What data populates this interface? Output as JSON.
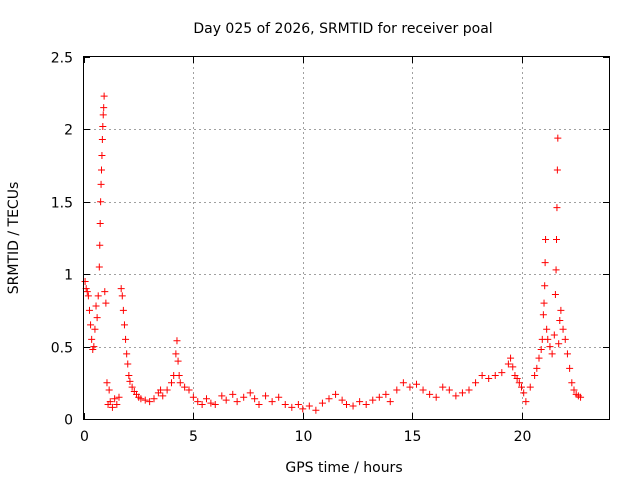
{
  "chart_data": {
    "type": "scatter",
    "title": "Day 025 of 2026, SRMTID for receiver poal",
    "xlabel": "GPS time / hours",
    "ylabel": "SRMTID / TECUs",
    "xlim": [
      0,
      24
    ],
    "ylim": [
      0,
      2.5
    ],
    "xticks": [
      0,
      5,
      10,
      15,
      20
    ],
    "yticks": [
      0,
      0.5,
      1,
      1.5,
      2,
      2.5
    ],
    "xtick_labels": [
      "0",
      "5",
      "10",
      "15",
      "20"
    ],
    "ytick_labels": [
      "0",
      "0.5",
      "1",
      "1.5",
      "2",
      "2.5"
    ],
    "grid": true,
    "marker": "+",
    "series": [
      {
        "name": "SRMTID",
        "color": "#ff0000",
        "points": [
          [
            0.05,
            0.95
          ],
          [
            0.1,
            0.9
          ],
          [
            0.15,
            0.88
          ],
          [
            0.2,
            0.85
          ],
          [
            0.25,
            0.75
          ],
          [
            0.3,
            0.65
          ],
          [
            0.35,
            0.55
          ],
          [
            0.4,
            0.48
          ],
          [
            0.45,
            0.5
          ],
          [
            0.5,
            0.62
          ],
          [
            0.55,
            0.78
          ],
          [
            0.6,
            0.7
          ],
          [
            0.65,
            0.85
          ],
          [
            0.7,
            1.05
          ],
          [
            0.72,
            1.2
          ],
          [
            0.74,
            1.35
          ],
          [
            0.76,
            1.5
          ],
          [
            0.78,
            1.62
          ],
          [
            0.8,
            1.72
          ],
          [
            0.82,
            1.82
          ],
          [
            0.84,
            1.93
          ],
          [
            0.86,
            2.02
          ],
          [
            0.88,
            2.1
          ],
          [
            0.9,
            2.15
          ],
          [
            0.92,
            2.23
          ],
          [
            0.95,
            0.88
          ],
          [
            1.0,
            0.8
          ],
          [
            1.05,
            0.25
          ],
          [
            1.1,
            0.1
          ],
          [
            1.15,
            0.2
          ],
          [
            1.2,
            0.12
          ],
          [
            1.3,
            0.08
          ],
          [
            1.4,
            0.14
          ],
          [
            1.5,
            0.1
          ],
          [
            1.6,
            0.15
          ],
          [
            1.7,
            0.9
          ],
          [
            1.75,
            0.85
          ],
          [
            1.8,
            0.75
          ],
          [
            1.85,
            0.65
          ],
          [
            1.9,
            0.55
          ],
          [
            1.95,
            0.45
          ],
          [
            2.0,
            0.38
          ],
          [
            2.05,
            0.3
          ],
          [
            2.1,
            0.26
          ],
          [
            2.2,
            0.22
          ],
          [
            2.3,
            0.19
          ],
          [
            2.4,
            0.17
          ],
          [
            2.5,
            0.15
          ],
          [
            2.6,
            0.14
          ],
          [
            2.8,
            0.13
          ],
          [
            3.0,
            0.12
          ],
          [
            3.2,
            0.14
          ],
          [
            3.4,
            0.18
          ],
          [
            3.5,
            0.2
          ],
          [
            3.6,
            0.16
          ],
          [
            3.8,
            0.2
          ],
          [
            4.0,
            0.25
          ],
          [
            4.1,
            0.3
          ],
          [
            4.2,
            0.45
          ],
          [
            4.25,
            0.54
          ],
          [
            4.3,
            0.4
          ],
          [
            4.35,
            0.3
          ],
          [
            4.4,
            0.25
          ],
          [
            4.6,
            0.22
          ],
          [
            4.8,
            0.2
          ],
          [
            5.0,
            0.15
          ],
          [
            5.2,
            0.12
          ],
          [
            5.4,
            0.1
          ],
          [
            5.6,
            0.14
          ],
          [
            5.8,
            0.11
          ],
          [
            6.0,
            0.1
          ],
          [
            6.3,
            0.16
          ],
          [
            6.5,
            0.13
          ],
          [
            6.8,
            0.17
          ],
          [
            7.0,
            0.12
          ],
          [
            7.3,
            0.15
          ],
          [
            7.6,
            0.18
          ],
          [
            7.8,
            0.14
          ],
          [
            8.0,
            0.1
          ],
          [
            8.3,
            0.16
          ],
          [
            8.6,
            0.12
          ],
          [
            8.9,
            0.15
          ],
          [
            9.2,
            0.1
          ],
          [
            9.5,
            0.08
          ],
          [
            9.8,
            0.1
          ],
          [
            10.0,
            0.07
          ],
          [
            10.3,
            0.09
          ],
          [
            10.6,
            0.06
          ],
          [
            10.9,
            0.11
          ],
          [
            11.2,
            0.14
          ],
          [
            11.5,
            0.17
          ],
          [
            11.8,
            0.13
          ],
          [
            12.0,
            0.1
          ],
          [
            12.3,
            0.09
          ],
          [
            12.6,
            0.12
          ],
          [
            12.9,
            0.1
          ],
          [
            13.2,
            0.13
          ],
          [
            13.5,
            0.15
          ],
          [
            13.8,
            0.17
          ],
          [
            14.0,
            0.12
          ],
          [
            14.3,
            0.2
          ],
          [
            14.6,
            0.25
          ],
          [
            14.9,
            0.22
          ],
          [
            15.2,
            0.24
          ],
          [
            15.5,
            0.2
          ],
          [
            15.8,
            0.17
          ],
          [
            16.1,
            0.15
          ],
          [
            16.4,
            0.22
          ],
          [
            16.7,
            0.2
          ],
          [
            17.0,
            0.16
          ],
          [
            17.3,
            0.18
          ],
          [
            17.6,
            0.2
          ],
          [
            17.9,
            0.25
          ],
          [
            18.2,
            0.3
          ],
          [
            18.5,
            0.28
          ],
          [
            18.8,
            0.3
          ],
          [
            19.1,
            0.32
          ],
          [
            19.4,
            0.38
          ],
          [
            19.5,
            0.42
          ],
          [
            19.6,
            0.36
          ],
          [
            19.7,
            0.3
          ],
          [
            19.8,
            0.28
          ],
          [
            19.9,
            0.25
          ],
          [
            20.0,
            0.22
          ],
          [
            20.1,
            0.18
          ],
          [
            20.2,
            0.12
          ],
          [
            20.4,
            0.22
          ],
          [
            20.6,
            0.3
          ],
          [
            20.7,
            0.35
          ],
          [
            20.8,
            0.42
          ],
          [
            20.9,
            0.48
          ],
          [
            20.95,
            0.55
          ],
          [
            21.0,
            0.72
          ],
          [
            21.03,
            0.8
          ],
          [
            21.06,
            0.92
          ],
          [
            21.08,
            1.08
          ],
          [
            21.1,
            1.24
          ],
          [
            21.15,
            0.62
          ],
          [
            21.2,
            0.55
          ],
          [
            21.3,
            0.5
          ],
          [
            21.4,
            0.45
          ],
          [
            21.5,
            0.58
          ],
          [
            21.55,
            0.86
          ],
          [
            21.58,
            1.03
          ],
          [
            21.6,
            1.24
          ],
          [
            21.62,
            1.46
          ],
          [
            21.64,
            1.72
          ],
          [
            21.66,
            1.94
          ],
          [
            21.7,
            0.52
          ],
          [
            21.75,
            0.68
          ],
          [
            21.8,
            0.75
          ],
          [
            21.9,
            0.62
          ],
          [
            22.0,
            0.55
          ],
          [
            22.1,
            0.45
          ],
          [
            22.2,
            0.35
          ],
          [
            22.3,
            0.25
          ],
          [
            22.4,
            0.2
          ],
          [
            22.5,
            0.17
          ],
          [
            22.6,
            0.16
          ],
          [
            22.7,
            0.15
          ]
        ]
      }
    ]
  }
}
